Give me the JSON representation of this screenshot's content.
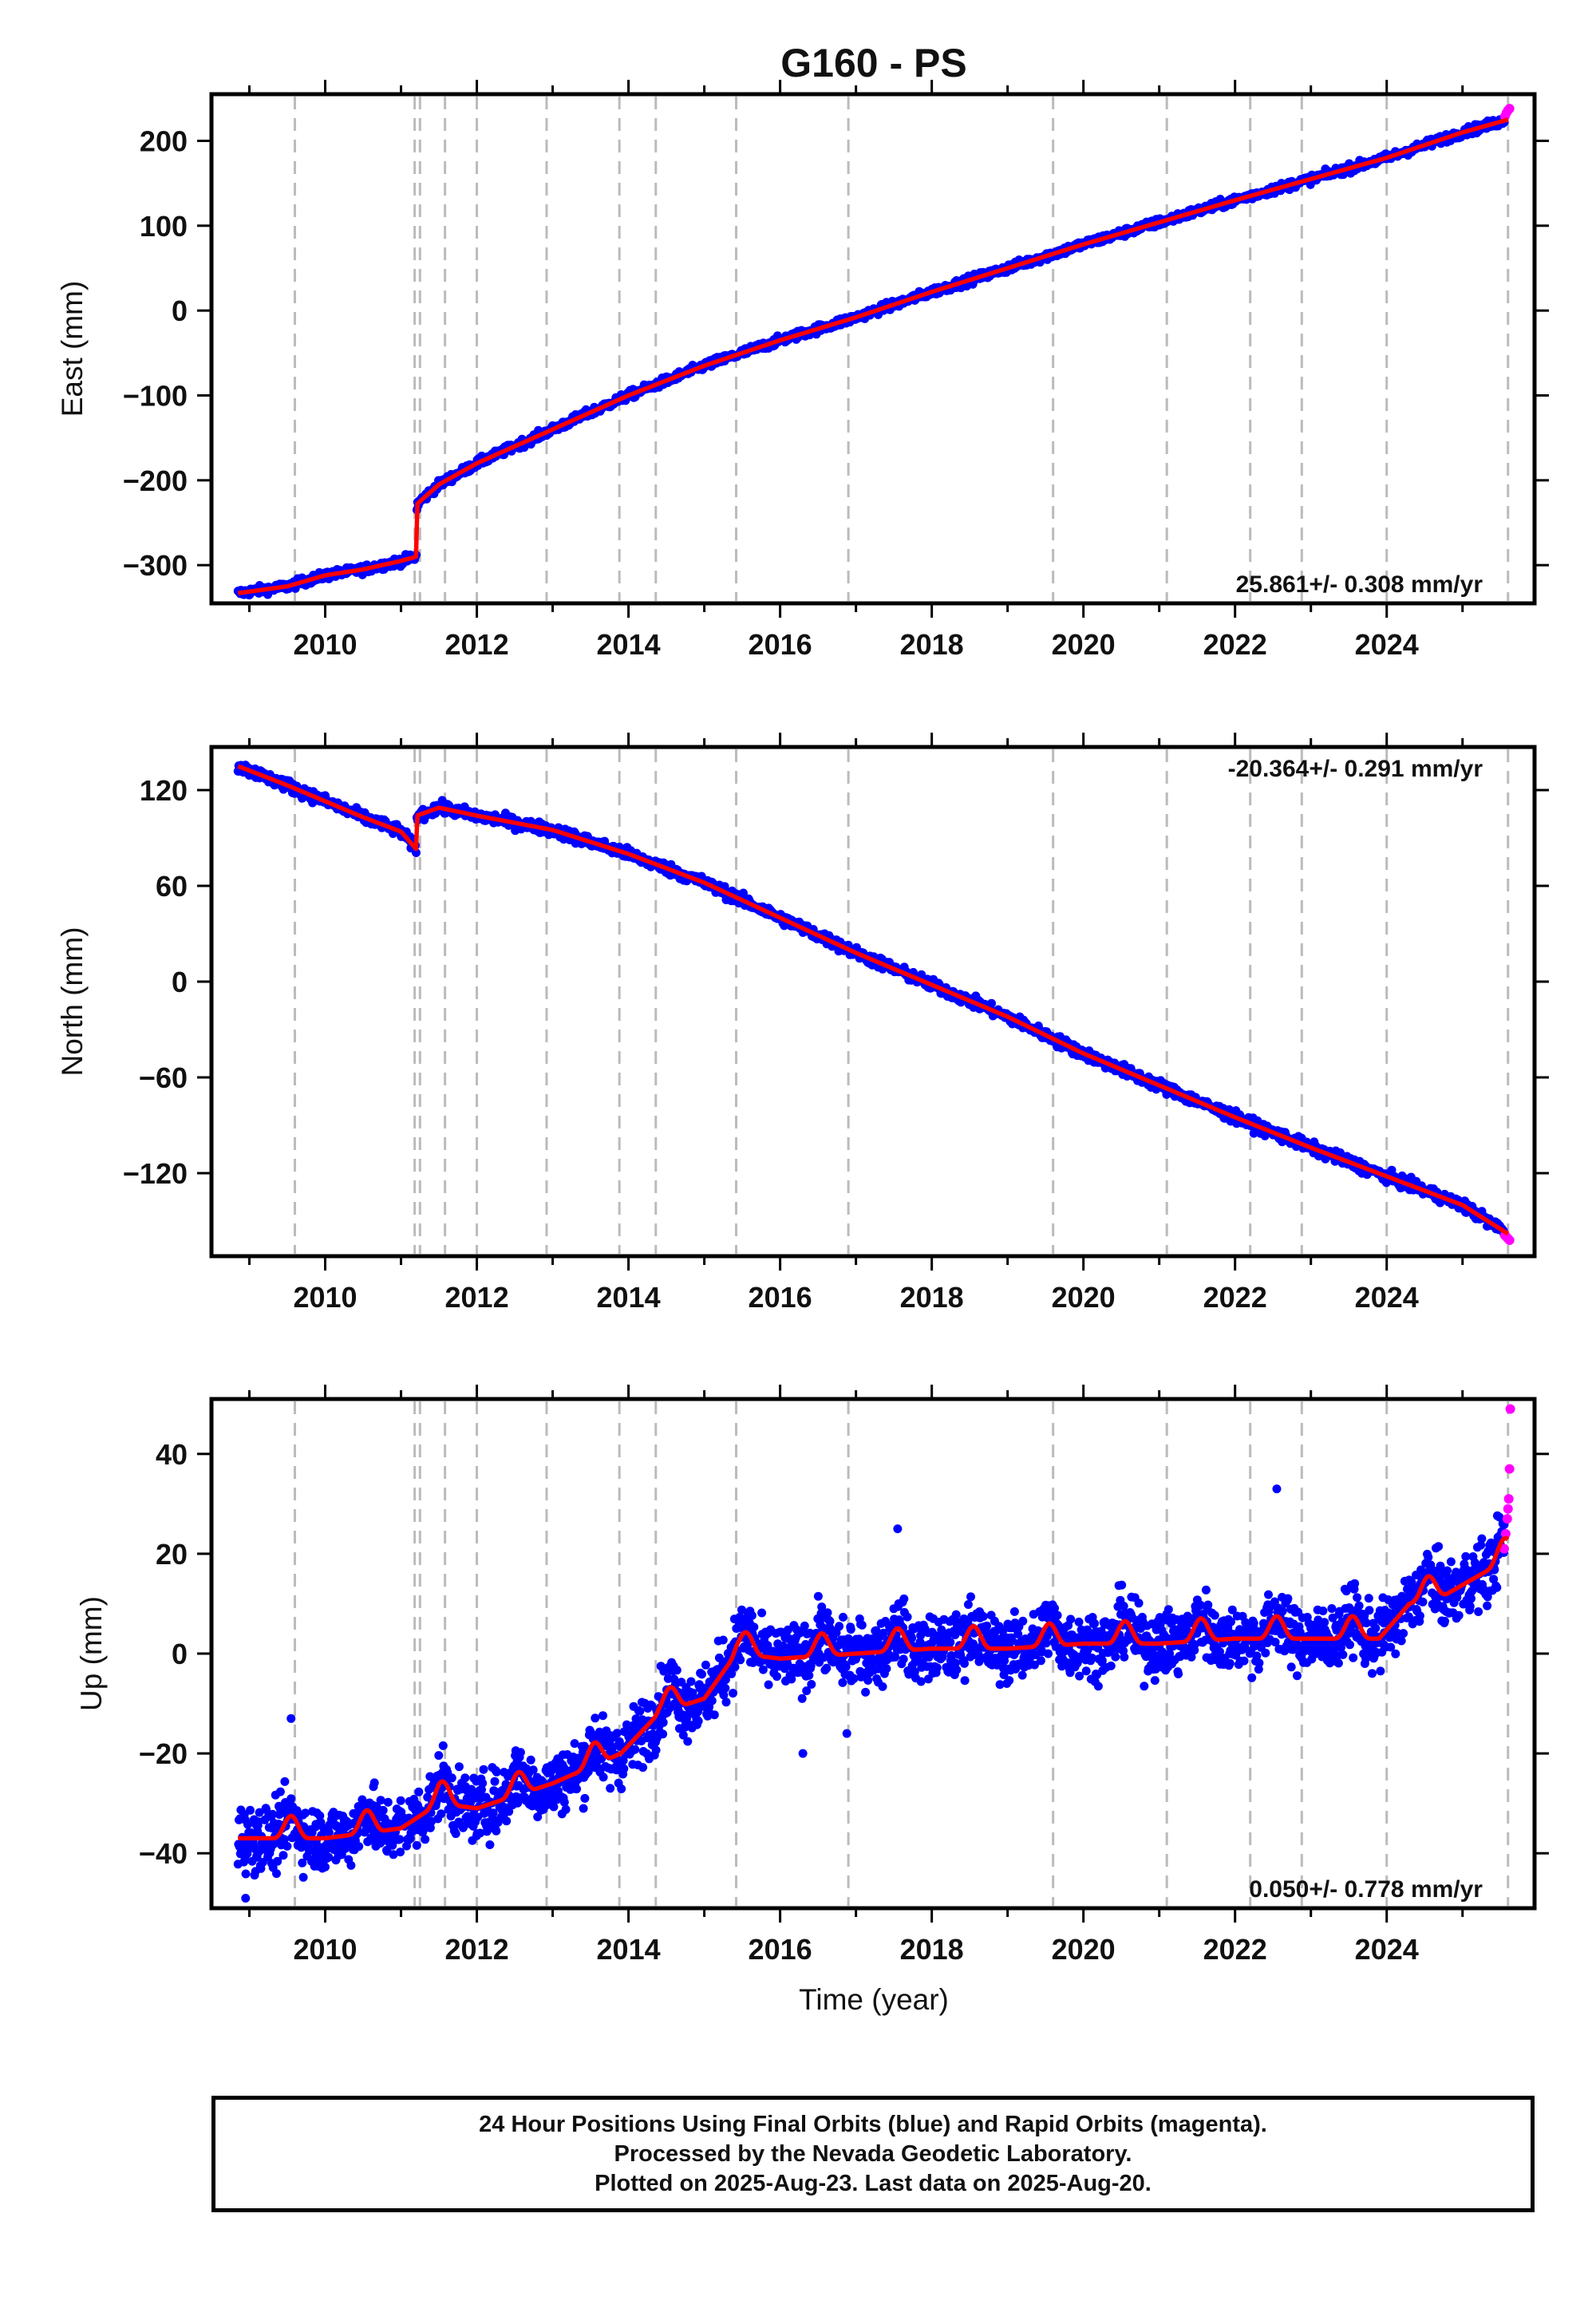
{
  "title": "G160 - PS",
  "xlabel": "Time (year)",
  "colors": {
    "final": "#0000ff",
    "rapid": "#ff00ff",
    "model": "#ff0000",
    "breaks": "#bbbbbb"
  },
  "footer": {
    "line1": "24 Hour Positions Using Final Orbits (blue) and Rapid Orbits (magenta).",
    "line2": "Processed by the Nevada Geodetic Laboratory.",
    "line3": "Plotted on 2025-Aug-23. Last data on 2025-Aug-20."
  },
  "chart_data": [
    {
      "type": "scatter",
      "ylabel": "East (mm)",
      "rate_label": "25.861+/- 0.308 mm/yr",
      "rate_position": "bottom-right",
      "xlim": [
        2008.5,
        2025.95
      ],
      "ylim": [
        -345,
        255
      ],
      "xticks": [
        2010,
        2012,
        2014,
        2016,
        2018,
        2020,
        2022,
        2024
      ],
      "yticks": [
        -300,
        -200,
        -100,
        0,
        100,
        200
      ],
      "ytick_labels": [
        "−300",
        "−200",
        "−100",
        "0",
        "100",
        "200"
      ],
      "equipment_breaks": [
        2009.6,
        2011.18,
        2011.25,
        2011.58,
        2012.0,
        2012.92,
        2013.88,
        2014.36,
        2015.42,
        2016.9,
        2019.6,
        2021.1,
        2022.2,
        2022.88,
        2024.0,
        2025.6
      ],
      "trend_knots": {
        "x": [
          2008.85,
          2009.5,
          2010.0,
          2010.5,
          2011.0,
          2011.2,
          2011.21,
          2011.5,
          2012.0,
          2013.0,
          2014.0,
          2015.0,
          2016.0,
          2017.0,
          2018.0,
          2019.0,
          2020.0,
          2021.0,
          2022.0,
          2023.0,
          2024.0,
          2025.0,
          2025.6
        ],
        "y": [
          -333,
          -325,
          -312,
          -305,
          -295,
          -290,
          -228,
          -205,
          -180,
          -140,
          -100,
          -65,
          -35,
          -8,
          22,
          50,
          78,
          104,
          130,
          155,
          180,
          210,
          225
        ]
      },
      "scatter_noise": 3.5,
      "rapid_points": {
        "x": [
          2025.56,
          2025.58,
          2025.6,
          2025.62
        ],
        "y": [
          229,
          233,
          236,
          238
        ]
      }
    },
    {
      "type": "scatter",
      "ylabel": "North (mm)",
      "rate_label": "-20.364+/- 0.291 mm/yr",
      "rate_position": "top-right",
      "xlim": [
        2008.5,
        2025.95
      ],
      "ylim": [
        -172,
        147
      ],
      "xticks": [
        2010,
        2012,
        2014,
        2016,
        2018,
        2020,
        2022,
        2024
      ],
      "yticks": [
        -120,
        -60,
        0,
        60,
        120
      ],
      "ytick_labels": [
        "−120",
        "−60",
        "0",
        "60",
        "120"
      ],
      "equipment_breaks": [
        2009.6,
        2011.18,
        2011.25,
        2011.58,
        2012.0,
        2012.92,
        2013.88,
        2014.36,
        2015.42,
        2016.9,
        2019.6,
        2021.1,
        2022.2,
        2022.88,
        2024.0,
        2025.6
      ],
      "trend_knots": {
        "x": [
          2008.85,
          2009.5,
          2010.0,
          2010.5,
          2011.0,
          2011.2,
          2011.21,
          2011.5,
          2012.0,
          2013.0,
          2014.0,
          2015.0,
          2016.0,
          2017.0,
          2018.0,
          2019.0,
          2020.0,
          2021.0,
          2022.0,
          2023.0,
          2024.0,
          2025.0,
          2025.6
        ],
        "y": [
          135,
          123,
          113,
          103,
          94,
          83,
          104,
          109,
          104,
          95,
          80,
          62,
          40,
          18,
          -2,
          -22,
          -45,
          -65,
          -85,
          -104,
          -122,
          -140,
          -158
        ]
      },
      "scatter_noise": 2.5,
      "rapid_points": {
        "x": [
          2025.56,
          2025.58,
          2025.6,
          2025.62
        ],
        "y": [
          -159,
          -160,
          -161,
          -162
        ]
      }
    },
    {
      "type": "scatter",
      "ylabel": "Up (mm)",
      "rate_label": "0.050+/- 0.778 mm/yr",
      "rate_position": "bottom-right",
      "xlim": [
        2008.5,
        2025.95
      ],
      "ylim": [
        -51,
        51
      ],
      "xticks": [
        2010,
        2012,
        2014,
        2016,
        2018,
        2020,
        2022,
        2024
      ],
      "yticks": [
        -40,
        -20,
        0,
        20,
        40
      ],
      "ytick_labels": [
        "−40",
        "−20",
        "0",
        "20",
        "40"
      ],
      "equipment_breaks": [
        2009.6,
        2011.18,
        2011.25,
        2011.58,
        2012.0,
        2012.92,
        2013.88,
        2014.36,
        2015.42,
        2016.9,
        2019.6,
        2021.1,
        2022.2,
        2022.88,
        2024.0,
        2025.6
      ],
      "trend_knots": {
        "x": [
          2008.85,
          2010.0,
          2011.0,
          2011.5,
          2012.0,
          2013.0,
          2013.9,
          2014.4,
          2015.0,
          2015.42,
          2016.0,
          2017.0,
          2018.0,
          2019.0,
          2020.0,
          2021.0,
          2022.0,
          2023.0,
          2023.9,
          2024.3,
          2024.8,
          2025.6
        ],
        "y": [
          -37,
          -37,
          -35,
          -30,
          -31,
          -26,
          -20,
          -12,
          -9,
          0,
          -1,
          0,
          1,
          1,
          2,
          2,
          3,
          3,
          3,
          10,
          12,
          19
        ]
      },
      "seasonal_amplitude": 4.5,
      "scatter_noise": 4.5,
      "rapid_points": {
        "x": [
          2025.55,
          2025.57,
          2025.59,
          2025.6,
          2025.61,
          2025.62,
          2025.63
        ],
        "y": [
          21,
          24,
          27,
          29,
          31,
          37,
          49
        ]
      },
      "outliers": {
        "x": [
          2008.95,
          2009.55,
          2016.3,
          2017.55,
          2022.55,
          2016.88
        ],
        "y": [
          -49,
          -13,
          -20,
          25,
          33,
          -16
        ]
      }
    }
  ]
}
